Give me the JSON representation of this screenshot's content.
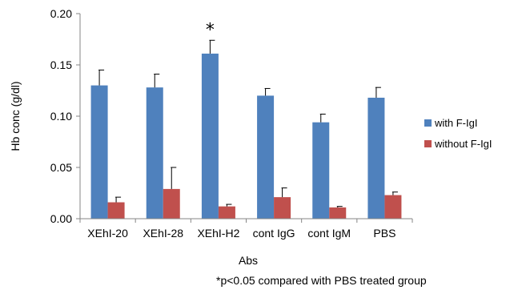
{
  "chart_data": {
    "type": "bar",
    "xlabel": "Abs",
    "ylabel": "Hb conc (g/dl)",
    "ylim": [
      0,
      0.2
    ],
    "yticks": [
      "0.00",
      "0.05",
      "0.10",
      "0.15",
      "0.20"
    ],
    "categories": [
      "XEhI-20",
      "XEhI-28",
      "XEhI-H2",
      "cont IgG",
      "cont IgM",
      "PBS"
    ],
    "series": [
      {
        "name": "with F-IgI",
        "color": "#4F81BD",
        "values": [
          0.13,
          0.128,
          0.161,
          0.12,
          0.094,
          0.118
        ],
        "errors": [
          0.015,
          0.013,
          0.013,
          0.007,
          0.008,
          0.01
        ]
      },
      {
        "name": "without F-IgI",
        "color": "#C0504D",
        "values": [
          0.016,
          0.029,
          0.012,
          0.021,
          0.011,
          0.023
        ],
        "errors": [
          0.005,
          0.021,
          0.002,
          0.009,
          0.001,
          0.003
        ]
      }
    ],
    "legend_position": "right",
    "grid": false,
    "annotations": [
      {
        "text": "*",
        "category_index": 2
      }
    ],
    "footnote": "*p<0.05 compared with PBS treated group"
  }
}
